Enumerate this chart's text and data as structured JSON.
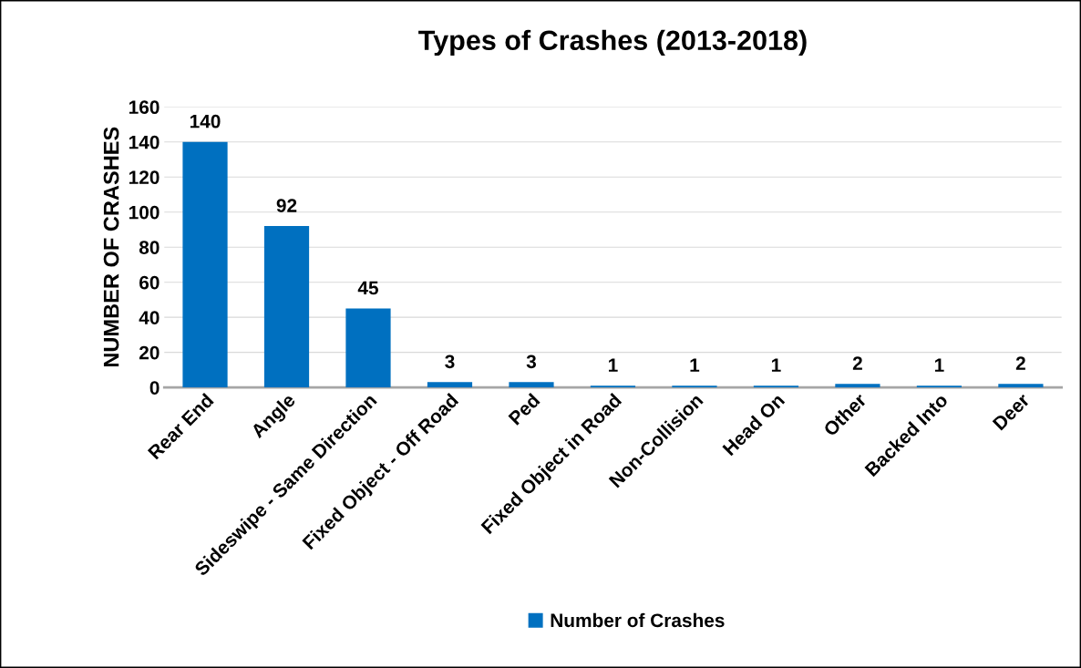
{
  "chart_data": {
    "type": "bar",
    "title": "Types of Crashes (2013-2018)",
    "ylabel": "NUMBER OF CRASHES",
    "categories": [
      "Rear End",
      "Angle",
      "Sideswipe - Same Direction",
      "Fixed Object - Off Road",
      "Ped",
      "Fixed Object in Road",
      "Non-Collision",
      "Head On",
      "Other",
      "Backed Into",
      "Deer"
    ],
    "series": [
      {
        "name": "Number of Crashes",
        "color": "#0070c0",
        "values": [
          140,
          92,
          45,
          3,
          3,
          1,
          1,
          1,
          2,
          1,
          2
        ]
      }
    ],
    "ylim": [
      0,
      160
    ],
    "yticks": [
      0,
      20,
      40,
      60,
      80,
      100,
      120,
      140,
      160
    ],
    "data_labels": true,
    "grid": "y",
    "legend": "bottom"
  }
}
